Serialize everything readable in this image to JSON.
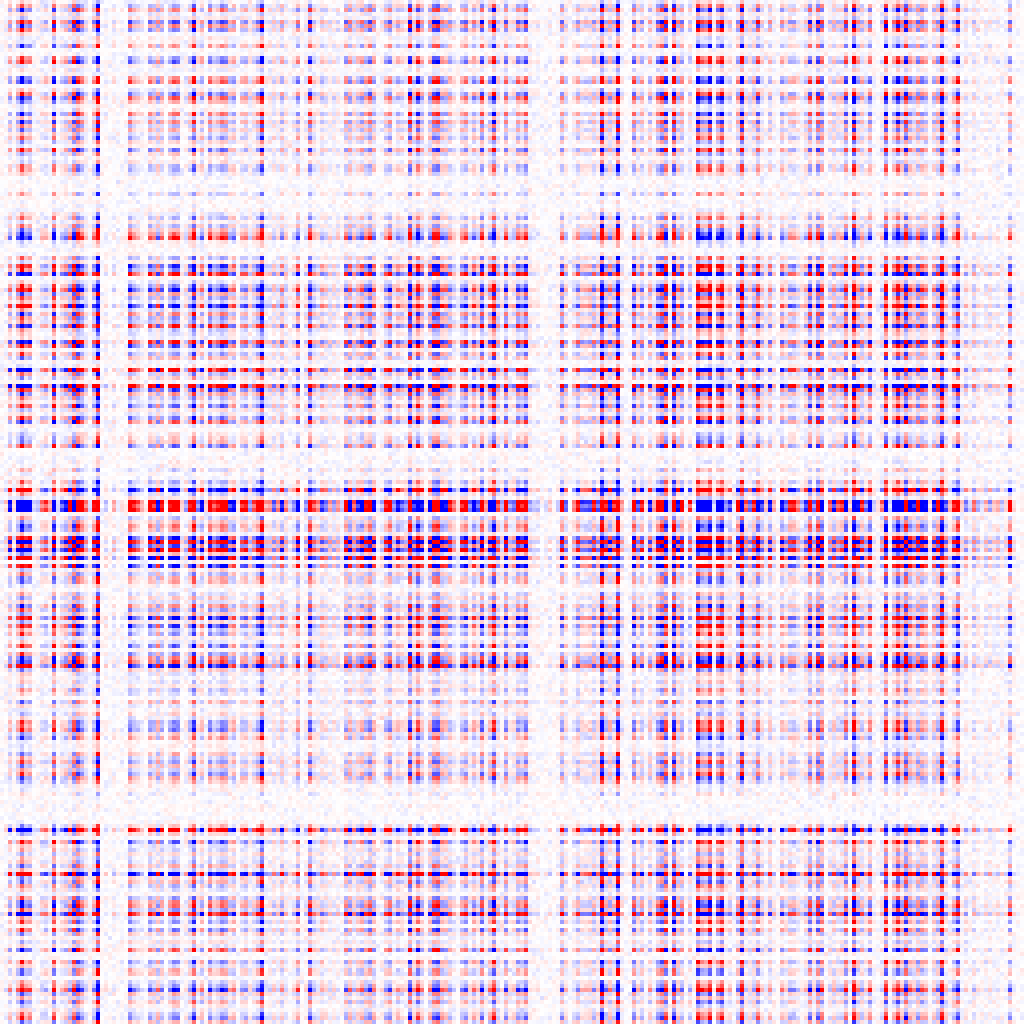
{
  "chart_data": {
    "type": "heatmap",
    "rows": 256,
    "cols": 256,
    "colormap": "bwr",
    "color_low": "#0000ff",
    "color_mid": "#ffffff",
    "color_high": "#ff0000",
    "value_range": [
      -1,
      1
    ],
    "axes_visible": false,
    "colorbar": false,
    "grid": false
  }
}
